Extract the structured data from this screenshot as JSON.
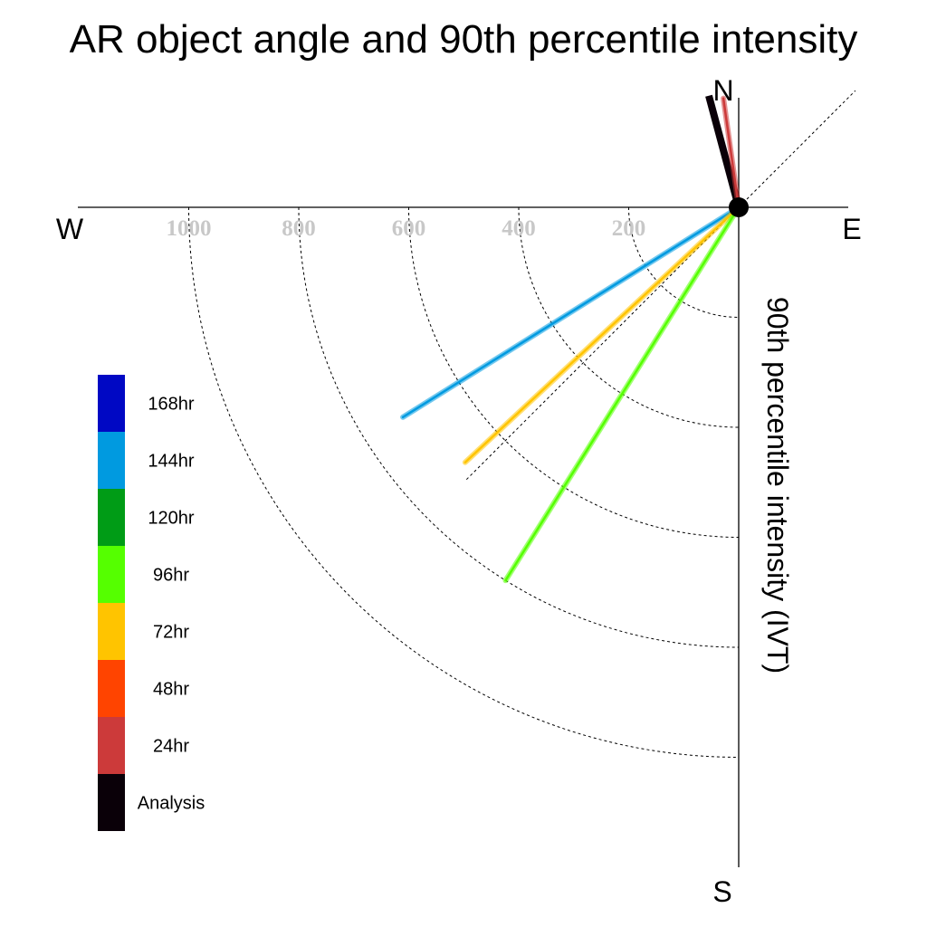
{
  "chart_data": {
    "type": "polar-vector",
    "title": "AR object angle and 90th percentile intensity",
    "axis_label": "90th percentile intensity (IVT)",
    "compass": {
      "north": "N",
      "south": "S",
      "east": "E",
      "west": "W"
    },
    "radial_ticks": [
      200,
      400,
      600,
      800,
      1000
    ],
    "radial_range": [
      0,
      1200
    ],
    "grid": true,
    "legend_placement": "left",
    "legend": [
      {
        "label": "168hr",
        "color": "#0008c4"
      },
      {
        "label": "144hr",
        "color": "#009ae0"
      },
      {
        "label": "120hr",
        "color": "#009c16"
      },
      {
        "label": "96hr",
        "color": "#55ff00"
      },
      {
        "label": "72hr",
        "color": "#ffc400"
      },
      {
        "label": "48hr",
        "color": "#ff4400"
      },
      {
        "label": "24hr",
        "color": "#cc3a3a"
      },
      {
        "label": "Analysis",
        "color": "#0a0008"
      }
    ],
    "series": [
      {
        "name": "Analysis",
        "direction_deg": 345,
        "intensity": 210,
        "color": "#0a0008"
      },
      {
        "name": "24hr",
        "direction_deg": 352,
        "intensity": 200,
        "color": "#cc3a3a"
      },
      {
        "name": "144hr",
        "direction_deg": 238,
        "intensity": 720,
        "color": "#009ae0"
      },
      {
        "name": "72hr",
        "direction_deg": 227,
        "intensity": 680,
        "color": "#ffc400"
      },
      {
        "name": "96hr",
        "direction_deg": 212,
        "intensity": 800,
        "color": "#55ff00"
      }
    ]
  }
}
